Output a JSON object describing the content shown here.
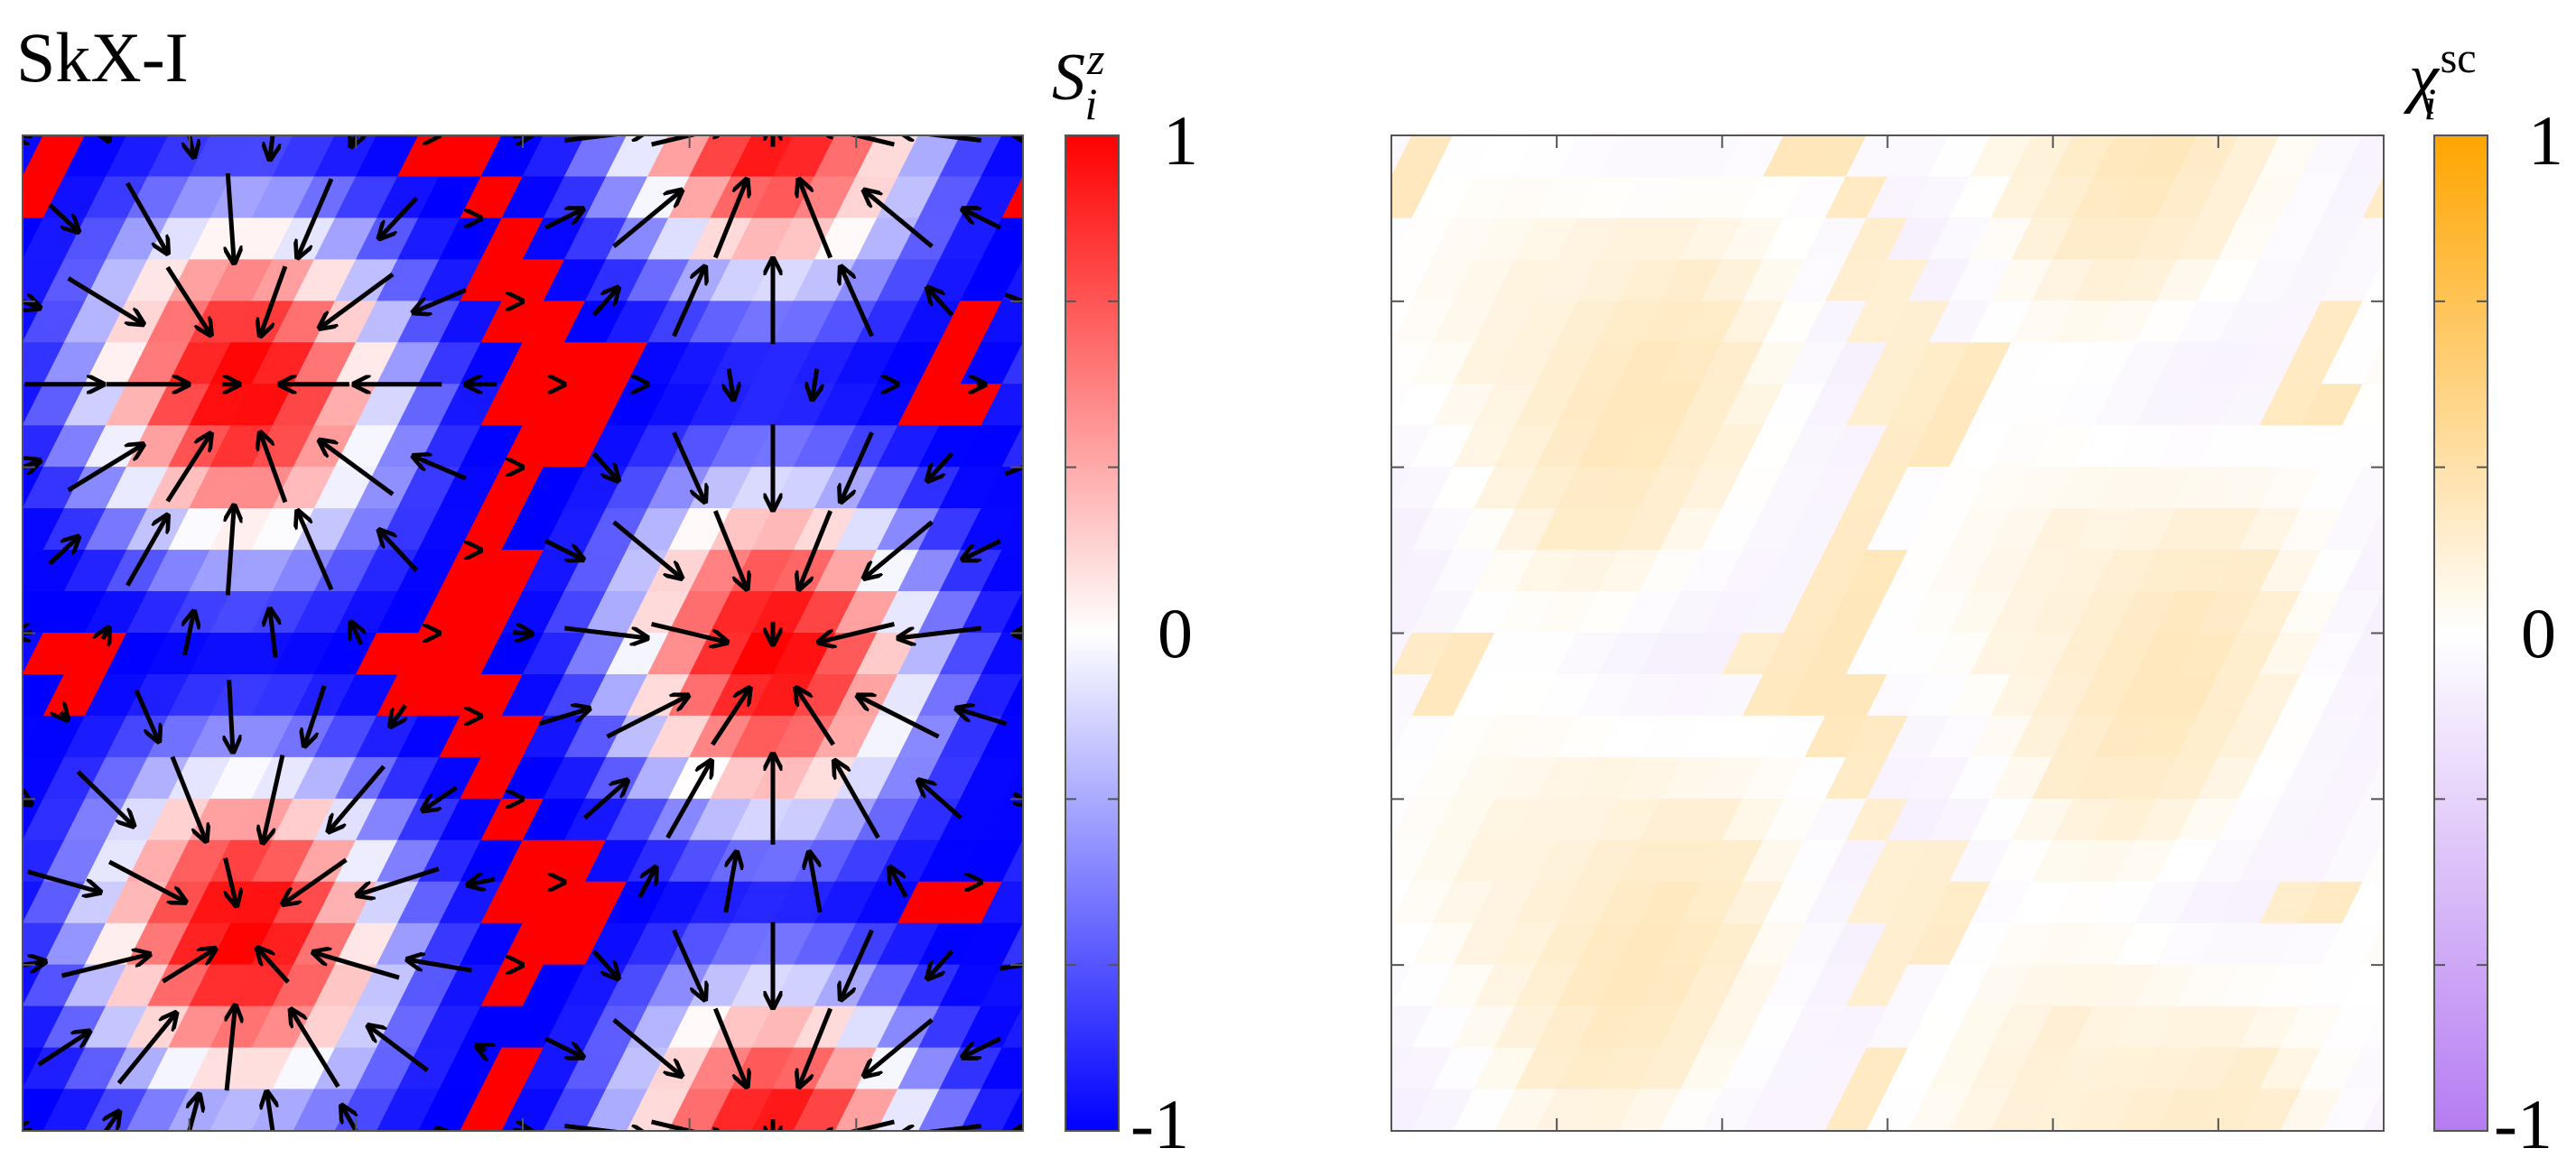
{
  "panel_label": "SkX-I",
  "left": {
    "colorbar": {
      "symbol": "S",
      "sub": "i",
      "sup": "z",
      "ticks": [
        "1",
        "0",
        "-1"
      ],
      "range": [
        -1,
        1
      ],
      "colors": {
        "max": "#ff0000",
        "mid": "#ffffff",
        "min": "#0000ff"
      }
    },
    "skyrmion_cores": [
      [
        0.22,
        0.25
      ],
      [
        0.75,
        0.52
      ],
      [
        0.22,
        0.8
      ],
      [
        0.75,
        1.02
      ],
      [
        0.75,
        -0.02
      ]
    ]
  },
  "right": {
    "colorbar": {
      "symbol": "χ",
      "sub": "i",
      "sup": "sc",
      "ticks": [
        "1",
        "0",
        "-1"
      ],
      "range": [
        -1,
        1
      ],
      "colors": {
        "max": "#ffa500",
        "mid": "#ffffff",
        "min": "#b57cf2"
      }
    }
  },
  "chart_data": [
    {
      "type": "heatmap",
      "title": "SkX-I",
      "quantity": "S_i^z",
      "colorbar_range": [
        -1,
        1
      ],
      "colorbar_ticks": [
        1,
        0,
        -1
      ],
      "overlay": "in-plane spin vectors (arrows)",
      "grid": "triangular lattice",
      "skyrmion_count_visible": 3
    },
    {
      "type": "heatmap",
      "quantity": "chi_i^sc",
      "colorbar_range": [
        -1,
        1
      ],
      "colorbar_ticks": [
        1,
        0,
        -1
      ],
      "value_range_estimate": [
        -0.05,
        0.3
      ]
    }
  ]
}
